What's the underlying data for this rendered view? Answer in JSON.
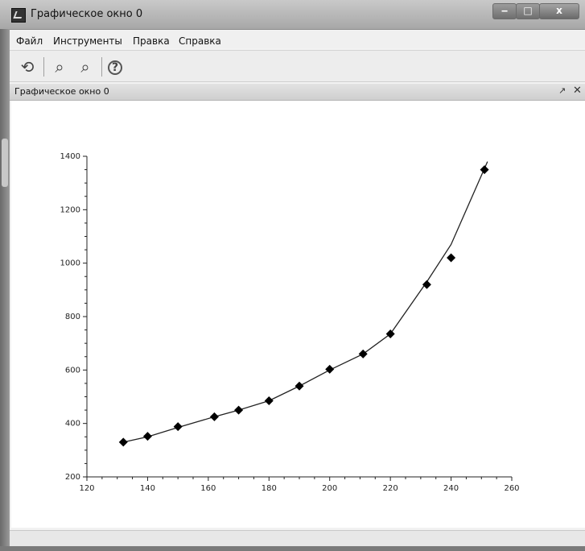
{
  "window": {
    "title": "Графическое окно 0",
    "buttons": {
      "minimize": "‒",
      "maximize": "□",
      "close": "x"
    }
  },
  "menu": {
    "items": [
      "Файл",
      "Инструменты",
      "Правка",
      "Справка"
    ]
  },
  "toolbar": {
    "tools": [
      {
        "name": "rotate-icon",
        "glyph": "⟲"
      },
      {
        "name": "zoom-area-icon",
        "glyph": "⌕"
      },
      {
        "name": "zoom-icon",
        "glyph": "⌕"
      },
      {
        "name": "help-icon",
        "glyph": "?"
      }
    ]
  },
  "panel": {
    "title": "Графическое окно 0",
    "undock_glyph": "↗",
    "close_glyph": "✕"
  },
  "chart_data": {
    "type": "line",
    "title": "",
    "xlabel": "",
    "ylabel": "",
    "xlim": [
      120,
      260
    ],
    "ylim": [
      200,
      1400
    ],
    "x_ticks": [
      120,
      140,
      160,
      180,
      200,
      220,
      240,
      260
    ],
    "y_ticks": [
      200,
      400,
      600,
      800,
      1000,
      1200,
      1400
    ],
    "grid": false,
    "line": {
      "x": [
        132,
        140,
        150,
        162,
        170,
        180,
        190,
        200,
        211,
        220,
        232,
        240,
        252
      ],
      "y": [
        330,
        350,
        385,
        425,
        450,
        485,
        540,
        600,
        660,
        735,
        930,
        1070,
        1380
      ]
    },
    "markers": {
      "x": [
        132,
        140,
        150,
        162,
        170,
        180,
        190,
        200,
        211,
        220,
        232,
        240,
        251
      ],
      "y": [
        330,
        352,
        388,
        425,
        450,
        485,
        540,
        603,
        660,
        735,
        920,
        1020,
        1350
      ]
    },
    "colors": {
      "line": "#222222",
      "marker": "#000000",
      "axis": "#222222"
    }
  }
}
